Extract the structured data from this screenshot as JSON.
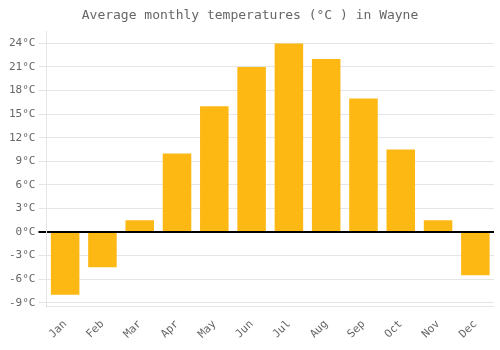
{
  "chart_data": {
    "type": "bar",
    "title": "Average monthly temperatures (°C ) in Wayne",
    "categories": [
      "Jan",
      "Feb",
      "Mar",
      "Apr",
      "May",
      "Jun",
      "Jul",
      "Aug",
      "Sep",
      "Oct",
      "Nov",
      "Dec"
    ],
    "values": [
      -8.0,
      -4.5,
      1.5,
      10.0,
      16.0,
      21.0,
      24.0,
      22.0,
      17.0,
      10.5,
      1.5,
      -5.5
    ],
    "color": "#FDB813",
    "ylim": [
      -9.5,
      25.5
    ],
    "yticks": [
      {
        "value": -9,
        "label": "-9°C"
      },
      {
        "value": -6,
        "label": "-6°C"
      },
      {
        "value": -3,
        "label": "-3°C"
      },
      {
        "value": 0,
        "label": "0°C"
      },
      {
        "value": 3,
        "label": "3°C"
      },
      {
        "value": 6,
        "label": "6°C"
      },
      {
        "value": 9,
        "label": "9°C"
      },
      {
        "value": 12,
        "label": "12°C"
      },
      {
        "value": 15,
        "label": "15°C"
      },
      {
        "value": 18,
        "label": "18°C"
      },
      {
        "value": 21,
        "label": "21°C"
      },
      {
        "value": 24,
        "label": "24°C"
      }
    ],
    "grid": true
  }
}
